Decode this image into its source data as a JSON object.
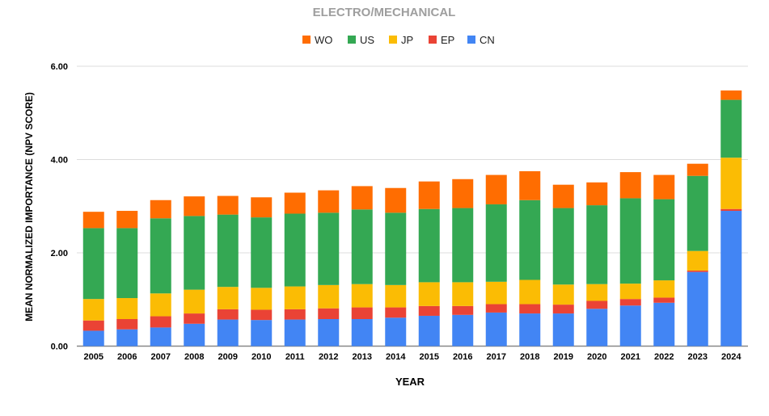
{
  "chart_data": {
    "type": "bar",
    "stacked": true,
    "title": "ELECTRO/MECHANICAL",
    "xlabel": "YEAR",
    "ylabel": "MEAN NORMALIZED IMPORTANCE (NPV SCORE)",
    "ylim": [
      0,
      6
    ],
    "yticks": [
      "0.00",
      "2.00",
      "4.00",
      "6.00"
    ],
    "grid": true,
    "legend_position": "top",
    "legend_order": [
      "WO",
      "US",
      "JP",
      "EP",
      "CN"
    ],
    "categories": [
      "2005",
      "2006",
      "2007",
      "2008",
      "2009",
      "2010",
      "2011",
      "2012",
      "2013",
      "2014",
      "2015",
      "2016",
      "2017",
      "2018",
      "2019",
      "2020",
      "2021",
      "2022",
      "2023",
      "2024"
    ],
    "series": [
      {
        "name": "CN",
        "color": "#4285f4",
        "values": [
          0.33,
          0.36,
          0.4,
          0.48,
          0.57,
          0.56,
          0.57,
          0.58,
          0.58,
          0.61,
          0.65,
          0.67,
          0.72,
          0.7,
          0.7,
          0.8,
          0.87,
          0.93,
          1.59,
          2.9
        ]
      },
      {
        "name": "EP",
        "color": "#ea4335",
        "values": [
          0.22,
          0.22,
          0.24,
          0.22,
          0.22,
          0.22,
          0.22,
          0.23,
          0.25,
          0.22,
          0.21,
          0.19,
          0.18,
          0.2,
          0.19,
          0.17,
          0.14,
          0.11,
          0.03,
          0.04
        ]
      },
      {
        "name": "JP",
        "color": "#fbbc04",
        "values": [
          0.46,
          0.45,
          0.49,
          0.51,
          0.48,
          0.47,
          0.49,
          0.5,
          0.5,
          0.48,
          0.51,
          0.51,
          0.48,
          0.52,
          0.43,
          0.36,
          0.33,
          0.37,
          0.42,
          1.1
        ]
      },
      {
        "name": "US",
        "color": "#34a853",
        "values": [
          1.52,
          1.5,
          1.61,
          1.58,
          1.55,
          1.51,
          1.56,
          1.55,
          1.6,
          1.55,
          1.57,
          1.59,
          1.66,
          1.71,
          1.64,
          1.69,
          1.83,
          1.74,
          1.61,
          1.24
        ]
      },
      {
        "name": "WO",
        "color": "#ff6d01",
        "values": [
          0.35,
          0.37,
          0.39,
          0.42,
          0.4,
          0.43,
          0.45,
          0.48,
          0.5,
          0.53,
          0.59,
          0.62,
          0.63,
          0.62,
          0.5,
          0.49,
          0.56,
          0.52,
          0.26,
          0.2
        ]
      }
    ]
  }
}
